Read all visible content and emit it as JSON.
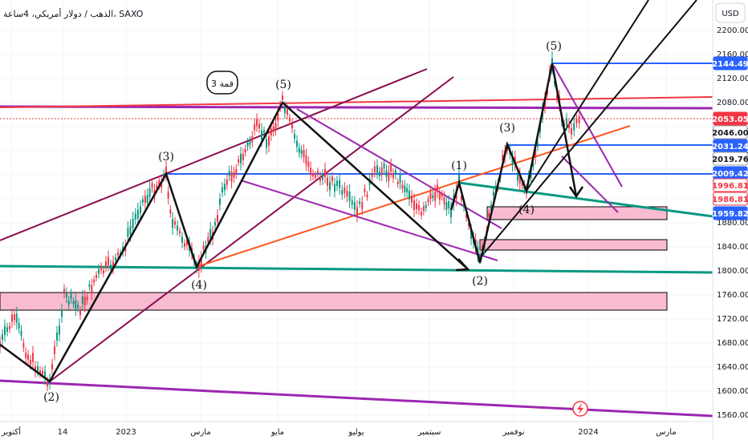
{
  "header": {
    "symbol_line": "الذهب / دولار أمريكي، 4ساعة، SAXO"
  },
  "currency_button": "USD",
  "colors": {
    "up_candle": "#089981",
    "down_candle": "#f23645",
    "blue_line": "#2962ff",
    "purple_line": "#9c27b0",
    "red_line": "#f23645",
    "teal_line": "#089981",
    "zone_fill": "#f8bbd0",
    "dark_red_line": "#880e4f",
    "orange_line": "#ff5722"
  },
  "annotation_box": "قمة 3",
  "chart_data": {
    "type": "candlestick",
    "x_ticks": [
      "أكتوبر",
      "14",
      "2023",
      "مارس",
      "مايو",
      "يوليو",
      "سبتمبر",
      "نوفمبر",
      "2024",
      "مارس"
    ],
    "y_ticks": [
      1560,
      1600,
      1640,
      1680,
      1720,
      1760,
      1800,
      1840,
      1880,
      1920,
      1960,
      2000,
      2040,
      2080,
      2120,
      2160,
      2200
    ],
    "ylim": [
      1550,
      2230
    ],
    "price_tags": [
      {
        "value": "2144.49",
        "style": "blue"
      },
      {
        "value": "2053.05",
        "style": "red"
      },
      {
        "value": "2046.00",
        "style": "plain"
      },
      {
        "value": "2031.24",
        "style": "blue"
      },
      {
        "value": "2019.76",
        "style": "plain"
      },
      {
        "value": "2009.42",
        "style": "blue"
      },
      {
        "value": "1996.81",
        "style": "redtext"
      },
      {
        "value": "1986.81",
        "style": "redtext"
      },
      {
        "value": "1959.82",
        "style": "blue"
      }
    ],
    "wave_labels": [
      {
        "text": "(2)",
        "x": 2022.86,
        "y": 1605
      },
      {
        "text": "(3)",
        "x": 2023.18,
        "y": 2030
      },
      {
        "text": "(4)",
        "x": 2023.26,
        "y": 1772
      },
      {
        "text": "(5)",
        "x": 2023.37,
        "y": 2103
      },
      {
        "text": "(1)",
        "x": 2023.75,
        "y": 2013
      },
      {
        "text": "(2)",
        "x": 2023.8,
        "y": 1782
      },
      {
        "text": "(3)",
        "x": 2023.84,
        "y": 2055
      },
      {
        "text": "(4)",
        "x": 2023.88,
        "y": 1946
      },
      {
        "text": "(5)",
        "x": 2023.93,
        "y": 2170
      }
    ]
  }
}
